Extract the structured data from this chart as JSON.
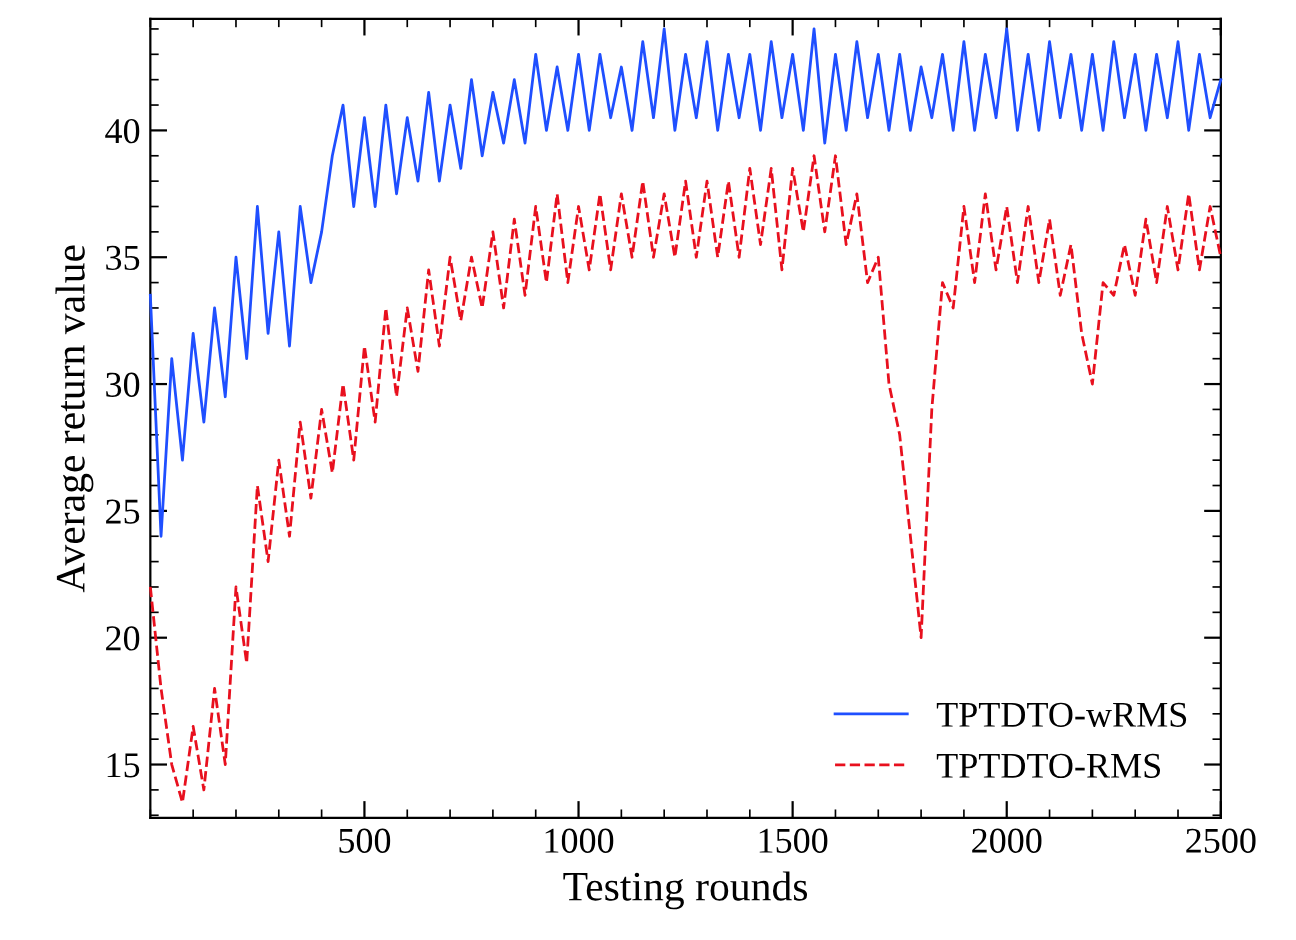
{
  "chart_data": {
    "type": "line",
    "xlabel": "Testing rounds",
    "ylabel": "Average return value",
    "x": [
      0,
      25,
      50,
      75,
      100,
      125,
      150,
      175,
      200,
      225,
      250,
      275,
      300,
      325,
      350,
      375,
      400,
      425,
      450,
      475,
      500,
      525,
      550,
      575,
      600,
      625,
      650,
      675,
      700,
      725,
      750,
      775,
      800,
      825,
      850,
      875,
      900,
      925,
      950,
      975,
      1000,
      1025,
      1050,
      1075,
      1100,
      1125,
      1150,
      1175,
      1200,
      1225,
      1250,
      1275,
      1300,
      1325,
      1350,
      1375,
      1400,
      1425,
      1450,
      1475,
      1500,
      1525,
      1550,
      1575,
      1600,
      1625,
      1650,
      1675,
      1700,
      1725,
      1750,
      1775,
      1800,
      1825,
      1850,
      1875,
      1900,
      1925,
      1950,
      1975,
      2000,
      2025,
      2050,
      2075,
      2100,
      2125,
      2150,
      2175,
      2200,
      2225,
      2250,
      2275,
      2300,
      2325,
      2350,
      2375,
      2400,
      2425,
      2450,
      2475,
      2500
    ],
    "series": [
      {
        "name": "TPTDTO-wRMS",
        "color": "#1f4fff",
        "line_style": "solid",
        "values": [
          33.5,
          24,
          31,
          27,
          32,
          28.5,
          33,
          29.5,
          35,
          31,
          37,
          32,
          36,
          31.5,
          37,
          34,
          36,
          39,
          41,
          37,
          40.5,
          37,
          41,
          37.5,
          40.5,
          38,
          41.5,
          38,
          41,
          38.5,
          42,
          39,
          41.5,
          39.5,
          42,
          39.5,
          43,
          40,
          42.5,
          40,
          43,
          40,
          43,
          40.5,
          42.5,
          40,
          43.5,
          40.5,
          44,
          40,
          43,
          40.5,
          43.5,
          40,
          43,
          40.5,
          43,
          40,
          43.5,
          40.5,
          43,
          40,
          44,
          39.5,
          43,
          40,
          43.5,
          40.5,
          43,
          40,
          43,
          40,
          42.5,
          40.5,
          43,
          40,
          43.5,
          40,
          43,
          40.5,
          44,
          40,
          43,
          40,
          43.5,
          40.5,
          43,
          40,
          43,
          40,
          43.5,
          40.5,
          43,
          40,
          43,
          40.5,
          43.5,
          40,
          43,
          40.5,
          42
        ]
      },
      {
        "name": "TPTDTO-RMS",
        "color": "#e8101e",
        "line_style": "dashed",
        "values": [
          22,
          18,
          15,
          13.5,
          16.5,
          14,
          18,
          15,
          22,
          19,
          26,
          23,
          27,
          24,
          28.5,
          25.5,
          29,
          26.5,
          30,
          27,
          31.5,
          28.5,
          33,
          29.5,
          33,
          30.5,
          34.5,
          31.5,
          35,
          32.5,
          35,
          33,
          36,
          33,
          36.5,
          33.5,
          37,
          34,
          37.5,
          34,
          37,
          34.5,
          37.5,
          34.5,
          37.5,
          35,
          38,
          35,
          37.5,
          35,
          38,
          35,
          38,
          35,
          38,
          35,
          38.5,
          35.5,
          38.5,
          34.5,
          38.5,
          36,
          39,
          36,
          39,
          35.5,
          37.5,
          34,
          35,
          30,
          28,
          24,
          20,
          29,
          34,
          33,
          37,
          34,
          37.5,
          34.5,
          37,
          34,
          37,
          34,
          36.5,
          33.5,
          35.5,
          32,
          30,
          34,
          33.5,
          35.5,
          33.5,
          36.5,
          34,
          37,
          34.5,
          37.5,
          34.5,
          37,
          35
        ]
      }
    ],
    "xlim": [
      0,
      2500
    ],
    "xticks": [
      500,
      1000,
      1500,
      2000,
      2500
    ],
    "ylim": [
      12.9,
      44.4
    ],
    "yticks": [
      15,
      20,
      25,
      30,
      35,
      40
    ],
    "grid": false,
    "legend": "lower right"
  }
}
